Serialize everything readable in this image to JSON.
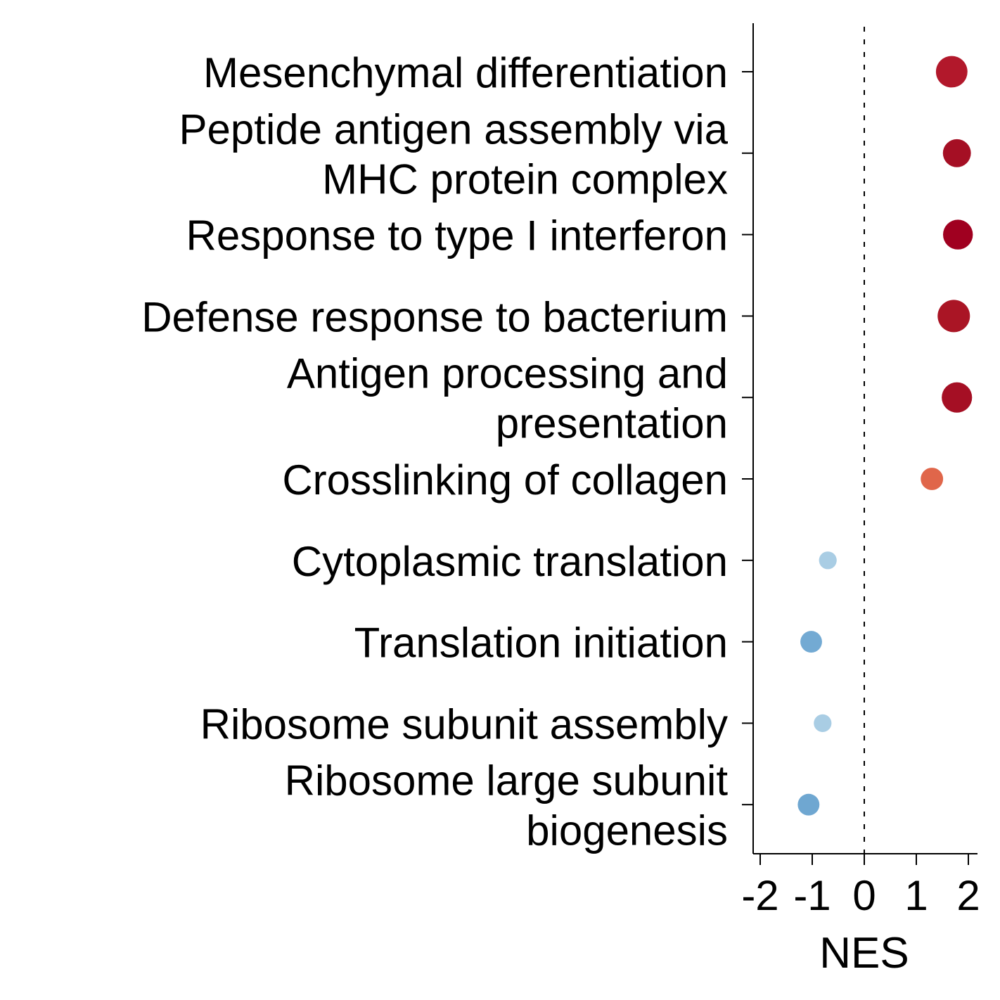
{
  "chart_data": {
    "type": "scatter",
    "xlabel": "NES",
    "xlim": [
      -2.2,
      2.2
    ],
    "xticks": [
      "-2",
      "-1",
      "0",
      "1",
      "2"
    ],
    "reference_line": 0,
    "grid": false,
    "legend": "none",
    "points": [
      {
        "label": [
          "Mesenchymal differentiation"
        ],
        "nes": 1.68,
        "relative_size": 0.95,
        "color": "#b2182b"
      },
      {
        "label": [
          "Peptide antigen assembly via",
          "MHC protein complex"
        ],
        "nes": 1.78,
        "relative_size": 0.75,
        "color": "#a50f24"
      },
      {
        "label": [
          "Response to type I interferon"
        ],
        "nes": 1.8,
        "relative_size": 0.85,
        "color": "#a00020"
      },
      {
        "label": [
          "Defense response to bacterium"
        ],
        "nes": 1.72,
        "relative_size": 1.0,
        "color": "#aa1525"
      },
      {
        "label": [
          "Antigen processing and",
          "presentation"
        ],
        "nes": 1.78,
        "relative_size": 0.88,
        "color": "#a50f24"
      },
      {
        "label": [
          "Crosslinking of collagen"
        ],
        "nes": 1.3,
        "relative_size": 0.48,
        "color": "#e0664a"
      },
      {
        "label": [
          "Cytoplasmic translation"
        ],
        "nes": -0.7,
        "relative_size": 0.3,
        "color": "#a9cde4"
      },
      {
        "label": [
          "Translation initiation"
        ],
        "nes": -1.02,
        "relative_size": 0.45,
        "color": "#73aad3"
      },
      {
        "label": [
          "Ribosome subunit assembly"
        ],
        "nes": -0.8,
        "relative_size": 0.3,
        "color": "#a9cde4"
      },
      {
        "label": [
          "Ribosome large subunit",
          "biogenesis"
        ],
        "nes": -1.07,
        "relative_size": 0.45,
        "color": "#6fa7d1"
      }
    ]
  }
}
